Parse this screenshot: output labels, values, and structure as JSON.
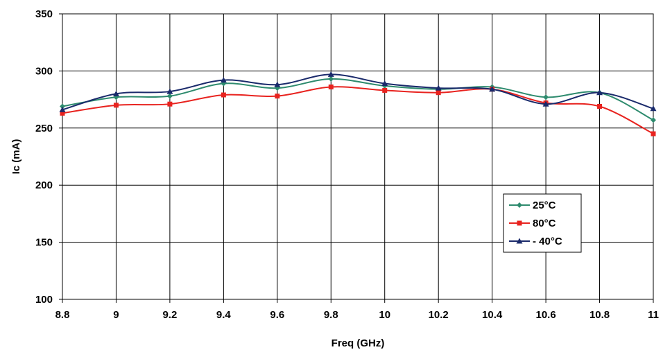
{
  "chart_data": {
    "type": "line",
    "title": "",
    "xlabel": "Freq (GHz)",
    "ylabel": "Ic (mA)",
    "xlim": [
      8.8,
      11
    ],
    "ylim": [
      100,
      350
    ],
    "grid": true,
    "legend_position": "right-middle",
    "x_tick_labels": [
      "8.8",
      "9",
      "9.2",
      "9.4",
      "9.6",
      "9.8",
      "10",
      "10.2",
      "10.4",
      "10.6",
      "10.8",
      "11"
    ],
    "y_tick_labels": [
      "100",
      "150",
      "200",
      "250",
      "300",
      "350"
    ],
    "x": [
      8.8,
      9.0,
      9.2,
      9.4,
      9.6,
      9.8,
      10.0,
      10.2,
      10.4,
      10.6,
      10.8,
      11.0
    ],
    "series": [
      {
        "name": "25°C",
        "color": "#2e8b6e",
        "marker": "diamond",
        "values": [
          269,
          277,
          278,
          289,
          285,
          293,
          287,
          284,
          286,
          277,
          281,
          257
        ]
      },
      {
        "name": "80°C",
        "color": "#e8231f",
        "marker": "square",
        "values": [
          263,
          270,
          271,
          279,
          278,
          286,
          283,
          281,
          284,
          272,
          269,
          245
        ]
      },
      {
        "name": "- 40°C",
        "color": "#1a2a6b",
        "marker": "triangle",
        "values": [
          266,
          280,
          282,
          292,
          288,
          297,
          289,
          285,
          284,
          271,
          281,
          267
        ]
      }
    ]
  }
}
